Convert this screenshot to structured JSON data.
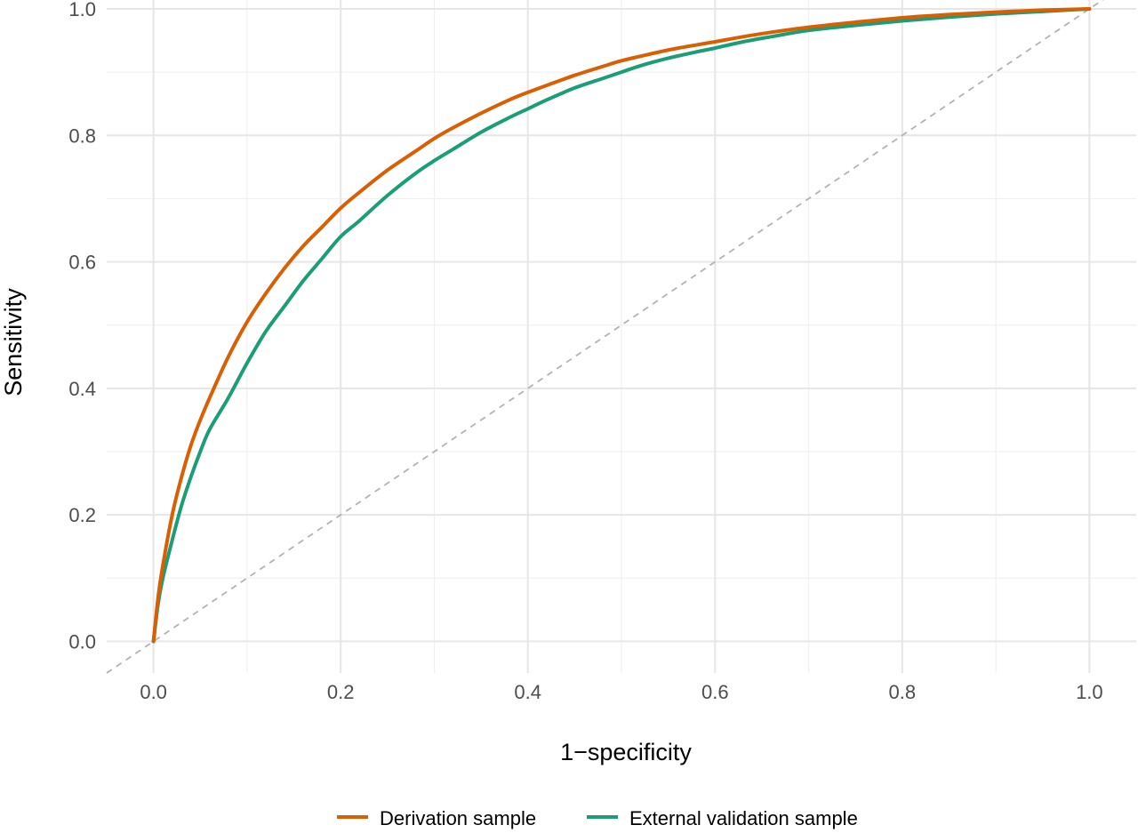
{
  "chart_data": {
    "type": "line",
    "title": "",
    "xlabel": "1−specificity",
    "ylabel": "Sensitivity",
    "xlim": [
      -0.05,
      1.05
    ],
    "ylim": [
      -0.05,
      1.0
    ],
    "x_ticks": [
      0.0,
      0.2,
      0.4,
      0.6,
      0.8,
      1.0
    ],
    "x_tick_labels": [
      "0.0",
      "0.2",
      "0.4",
      "0.6",
      "0.8",
      "1.0"
    ],
    "y_ticks": [
      0.0,
      0.2,
      0.4,
      0.6,
      0.8,
      1.0
    ],
    "y_tick_labels": [
      "0.0",
      "0.2",
      "0.4",
      "0.6",
      "0.8",
      "1.0"
    ],
    "grid": true,
    "legend_position": "bottom",
    "reference_line": {
      "x": [
        0,
        1
      ],
      "y": [
        0,
        1
      ],
      "style": "dashed",
      "color": "#b3b3b3"
    },
    "series": [
      {
        "name": "Derivation sample",
        "color": "#d95f02",
        "x": [
          0.0,
          0.005,
          0.01,
          0.02,
          0.03,
          0.04,
          0.05,
          0.06,
          0.08,
          0.1,
          0.12,
          0.14,
          0.16,
          0.18,
          0.2,
          0.22,
          0.25,
          0.28,
          0.3,
          0.32,
          0.35,
          0.38,
          0.4,
          0.42,
          0.45,
          0.48,
          0.5,
          0.52,
          0.55,
          0.58,
          0.6,
          0.63,
          0.66,
          0.7,
          0.75,
          0.8,
          0.85,
          0.9,
          0.95,
          1.0
        ],
        "y": [
          0.0,
          0.07,
          0.12,
          0.2,
          0.26,
          0.31,
          0.35,
          0.385,
          0.45,
          0.505,
          0.55,
          0.59,
          0.625,
          0.655,
          0.685,
          0.71,
          0.745,
          0.775,
          0.795,
          0.812,
          0.835,
          0.856,
          0.868,
          0.879,
          0.895,
          0.909,
          0.918,
          0.925,
          0.935,
          0.943,
          0.948,
          0.956,
          0.963,
          0.971,
          0.979,
          0.986,
          0.991,
          0.995,
          0.998,
          1.0
        ]
      },
      {
        "name": "External validation sample",
        "color": "#1b9e77",
        "x": [
          0.0,
          0.005,
          0.01,
          0.02,
          0.03,
          0.04,
          0.05,
          0.06,
          0.08,
          0.1,
          0.12,
          0.14,
          0.16,
          0.18,
          0.2,
          0.22,
          0.25,
          0.28,
          0.3,
          0.32,
          0.35,
          0.38,
          0.4,
          0.42,
          0.45,
          0.48,
          0.5,
          0.52,
          0.55,
          0.58,
          0.6,
          0.63,
          0.66,
          0.7,
          0.75,
          0.8,
          0.85,
          0.9,
          0.95,
          1.0
        ],
        "y": [
          0.0,
          0.06,
          0.1,
          0.16,
          0.215,
          0.26,
          0.3,
          0.335,
          0.385,
          0.44,
          0.49,
          0.53,
          0.57,
          0.605,
          0.64,
          0.665,
          0.705,
          0.74,
          0.76,
          0.778,
          0.805,
          0.828,
          0.842,
          0.856,
          0.875,
          0.89,
          0.9,
          0.91,
          0.922,
          0.932,
          0.938,
          0.948,
          0.956,
          0.966,
          0.974,
          0.981,
          0.987,
          0.992,
          0.996,
          1.0
        ]
      }
    ]
  }
}
